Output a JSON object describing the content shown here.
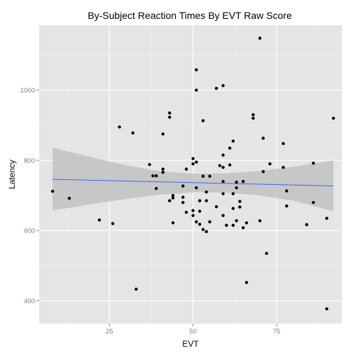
{
  "chart_data": {
    "type": "scatter",
    "title": "By-Subject Reaction Times By EVT Raw Score",
    "xlabel": "EVT",
    "ylabel": "Latency",
    "xlim": [
      4,
      94.5
    ],
    "ylim": [
      335,
      1185
    ],
    "xticks": [
      25,
      50,
      75
    ],
    "yticks": [
      400,
      600,
      800,
      1000
    ],
    "grid": true,
    "colors": {
      "panel": "#e5e5e5",
      "grid_major": "#ffffff",
      "grid_minor": "#f2f2f2",
      "points": "#000000",
      "trend_line": "#3366ff",
      "ribbon": "#bfbfbf"
    },
    "points": [
      [
        8,
        712
      ],
      [
        13,
        692
      ],
      [
        22,
        630
      ],
      [
        26,
        620
      ],
      [
        28,
        895
      ],
      [
        32,
        878
      ],
      [
        33,
        433
      ],
      [
        37,
        788
      ],
      [
        38,
        756
      ],
      [
        39,
        756
      ],
      [
        39,
        720
      ],
      [
        41,
        775
      ],
      [
        41,
        766
      ],
      [
        41,
        875
      ],
      [
        43,
        935
      ],
      [
        43,
        923
      ],
      [
        43,
        685
      ],
      [
        44,
        700
      ],
      [
        44,
        693
      ],
      [
        44,
        622
      ],
      [
        47,
        727
      ],
      [
        47,
        695
      ],
      [
        47,
        680
      ],
      [
        48,
        652
      ],
      [
        48,
        775
      ],
      [
        50,
        805
      ],
      [
        50,
        790
      ],
      [
        50,
        657
      ],
      [
        50,
        643
      ],
      [
        51,
        1058
      ],
      [
        51,
        1000
      ],
      [
        51,
        795
      ],
      [
        51,
        722
      ],
      [
        51,
        625
      ],
      [
        52,
        685
      ],
      [
        52,
        655
      ],
      [
        52,
        618
      ],
      [
        53,
        913
      ],
      [
        53,
        755
      ],
      [
        53,
        603
      ],
      [
        54,
        710
      ],
      [
        54,
        597
      ],
      [
        54,
        685
      ],
      [
        55,
        755
      ],
      [
        55,
        625
      ],
      [
        57,
        1005
      ],
      [
        57,
        668
      ],
      [
        58,
        785
      ],
      [
        59,
        1013
      ],
      [
        59,
        815
      ],
      [
        59,
        780
      ],
      [
        59,
        740
      ],
      [
        59,
        705
      ],
      [
        59,
        643
      ],
      [
        60,
        615
      ],
      [
        61,
        835
      ],
      [
        61,
        787
      ],
      [
        62,
        855
      ],
      [
        62,
        705
      ],
      [
        62,
        663
      ],
      [
        62,
        615
      ],
      [
        63,
        738
      ],
      [
        63,
        722
      ],
      [
        63,
        628
      ],
      [
        64,
        683
      ],
      [
        64,
        667
      ],
      [
        65,
        740
      ],
      [
        65,
        608
      ],
      [
        66,
        622
      ],
      [
        66,
        452
      ],
      [
        68,
        930
      ],
      [
        68,
        920
      ],
      [
        70,
        1148
      ],
      [
        70,
        628
      ],
      [
        71,
        863
      ],
      [
        71,
        768
      ],
      [
        72,
        535
      ],
      [
        73,
        790
      ],
      [
        77,
        848
      ],
      [
        77,
        780
      ],
      [
        78,
        713
      ],
      [
        78,
        670
      ],
      [
        84,
        617
      ],
      [
        86,
        792
      ],
      [
        86,
        680
      ],
      [
        90,
        635
      ],
      [
        90,
        377
      ],
      [
        92,
        920
      ]
    ],
    "trend": {
      "x": [
        8,
        92
      ],
      "y": [
        746,
        727
      ]
    },
    "ribbon": {
      "x": [
        8,
        20,
        30,
        40,
        50,
        60,
        70,
        80,
        92
      ],
      "upper": [
        836,
        808,
        786,
        769,
        762,
        763,
        770,
        782,
        800
      ],
      "lower": [
        657,
        676,
        690,
        702,
        709,
        708,
        700,
        685,
        655
      ]
    }
  }
}
